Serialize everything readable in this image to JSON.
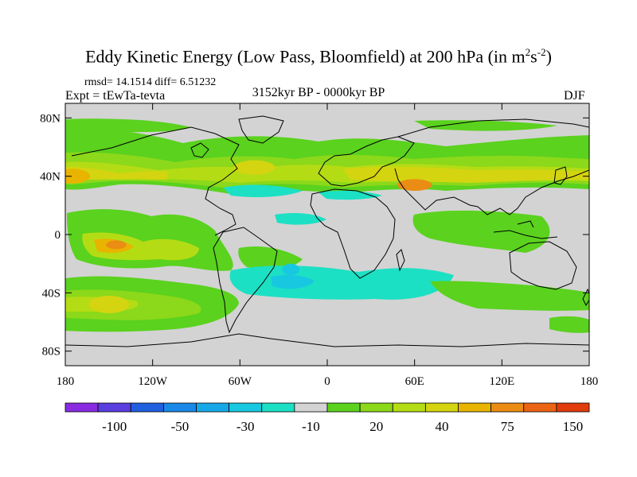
{
  "title": {
    "main": "Eddy Kinetic Energy (Low Pass, Bloomfield) at 200 hPa (in m",
    "sup1": "2",
    "mid": "s",
    "sup2": "-2",
    "end": ")"
  },
  "stats": "rmsd= 14.1514  diff= 6.51232",
  "expt": "Expt = tEwTa-tevta",
  "period": "3152kyr BP - 0000kyr BP",
  "season": "DJF",
  "map": {
    "lat_ticks": [
      "80N",
      "40N",
      "0",
      "40S",
      "80S"
    ],
    "lat_values": [
      80,
      40,
      0,
      -40,
      -80
    ],
    "lon_ticks": [
      "180",
      "120W",
      "60W",
      "0",
      "60E",
      "120E",
      "180"
    ],
    "lon_values": [
      -180,
      -120,
      -60,
      0,
      60,
      120,
      180
    ],
    "background_color": "#d3d3d3"
  },
  "colorbar": {
    "colors": [
      "#8a2be2",
      "#5a3ee0",
      "#2060e0",
      "#1a88e6",
      "#18a8e8",
      "#18c8e0",
      "#1ce0c4",
      "#d3d3d3",
      "#5ad21e",
      "#8cd81a",
      "#b4dc14",
      "#d4d410",
      "#e8b400",
      "#eb8c14",
      "#eb6414",
      "#e03c0c"
    ],
    "labels": [
      "-100",
      "-50",
      "-30",
      "-10",
      "20",
      "40",
      "75",
      "150"
    ]
  },
  "regions": [
    {
      "name": "north-pacific-core",
      "color": "#e8b400",
      "cx": -175,
      "cy": 40,
      "rx": 12,
      "ry": 5
    },
    {
      "name": "north-atlantic-core",
      "color": "#d4d410",
      "cx": -50,
      "cy": 46,
      "rx": 14,
      "ry": 5
    },
    {
      "name": "asia-jet-core",
      "color": "#eb8c14",
      "cx": 60,
      "cy": 34,
      "rx": 12,
      "ry": 4
    },
    {
      "name": "tropical-pacific-core",
      "color": "#eb8c14",
      "cx": -145,
      "cy": -7,
      "rx": 7,
      "ry": 3
    },
    {
      "name": "south-pacific-core",
      "color": "#d4d410",
      "cx": -150,
      "cy": -48,
      "rx": 14,
      "ry": 6
    },
    {
      "name": "south-atlantic-blue-core",
      "color": "#18c8e0",
      "cx": -25,
      "cy": -24,
      "rx": 6,
      "ry": 4
    }
  ]
}
